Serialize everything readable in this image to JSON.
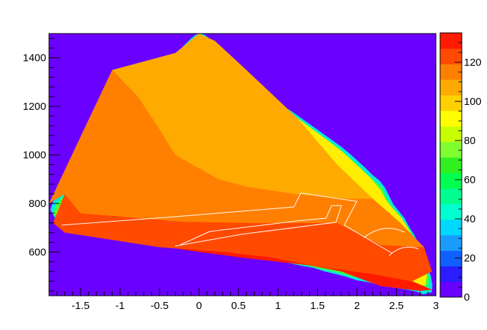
{
  "chart_data": {
    "type": "heatmap",
    "title": "",
    "xlabel": "",
    "ylabel": "",
    "xlim": [
      -1.9,
      3.0
    ],
    "ylim": [
      420,
      1500
    ],
    "x_ticks": [
      -1.5,
      -1,
      -0.5,
      0,
      0.5,
      1,
      1.5,
      2,
      2.5,
      3
    ],
    "x_tick_labels": [
      "-1.5",
      "-1",
      "-0.5",
      "0",
      "0.5",
      "1",
      "1.5",
      "2",
      "2.5",
      "3"
    ],
    "y_ticks": [
      600,
      800,
      1000,
      1200,
      1400
    ],
    "y_tick_labels": [
      "600",
      "800",
      "1000",
      "1200",
      "1400"
    ],
    "z_range": [
      0,
      135
    ],
    "colorbar_ticks": [
      0,
      20,
      40,
      60,
      80,
      100,
      120
    ],
    "colorbar_tick_labels": [
      "0",
      "20",
      "40",
      "60",
      "80",
      "100",
      "120"
    ],
    "colorbar_levels": [
      "#6a00ff",
      "#2a1dff",
      "#1060ff",
      "#1a9cff",
      "#00d8ff",
      "#00ffd0",
      "#00ff90",
      "#00ff50",
      "#30f020",
      "#80ff30",
      "#c8ff00",
      "#ffff00",
      "#ffd000",
      "#ffaa00",
      "#ff8000",
      "#ff4a00",
      "#ff1a00"
    ],
    "regions": [
      {
        "level": "~0 (background)",
        "color": "#6a00ff"
      },
      {
        "level": "~100-110",
        "color": "#ffaa00",
        "boundary": [
          [
            0,
            1500
          ],
          [
            0.2,
            1470
          ],
          [
            0.6,
            1350
          ],
          [
            1.25,
            1150
          ],
          [
            1.75,
            960
          ],
          [
            2.2,
            820
          ],
          [
            1.9,
            820
          ],
          [
            1.2,
            840
          ],
          [
            0.6,
            870
          ],
          [
            0.25,
            900
          ],
          [
            -0.3,
            1000
          ],
          [
            -0.45,
            1080
          ],
          [
            -0.75,
            1230
          ],
          [
            -1.1,
            1350
          ],
          [
            -0.3,
            1420
          ]
        ]
      },
      {
        "level": "~110-120",
        "color": "#ff8000",
        "boundary": [
          [
            -1.1,
            1350
          ],
          [
            -0.75,
            1230
          ],
          [
            -0.45,
            1080
          ],
          [
            -0.3,
            1000
          ],
          [
            0.25,
            900
          ],
          [
            0.6,
            870
          ],
          [
            1.2,
            840
          ],
          [
            1.9,
            820
          ],
          [
            2.2,
            820
          ],
          [
            2.55,
            720
          ],
          [
            2.85,
            620
          ],
          [
            2.3,
            630
          ],
          [
            1.75,
            720
          ],
          [
            0.7,
            720
          ],
          [
            -0.2,
            725
          ],
          [
            -1.5,
            760
          ],
          [
            -1.7,
            840
          ],
          [
            -1.9,
            800
          ]
        ]
      },
      {
        "level": "~120-130",
        "color": "#ff4a00",
        "boundary": [
          [
            -1.7,
            840
          ],
          [
            -1.5,
            760
          ],
          [
            -0.2,
            725
          ],
          [
            0.7,
            720
          ],
          [
            1.75,
            720
          ],
          [
            2.3,
            630
          ],
          [
            2.85,
            620
          ],
          [
            2.95,
            520
          ],
          [
            2.7,
            480
          ],
          [
            2.2,
            510
          ],
          [
            1.5,
            540
          ],
          [
            0.9,
            580
          ],
          [
            0.3,
            600
          ],
          [
            -0.5,
            620
          ],
          [
            -1.1,
            650
          ],
          [
            -1.7,
            680
          ],
          [
            -1.85,
            720
          ]
        ]
      },
      {
        "level": ">130",
        "color": "#ff1a00",
        "boundary": [
          [
            -0.3,
            615
          ],
          [
            0.3,
            600
          ],
          [
            0.9,
            580
          ],
          [
            1.5,
            540
          ],
          [
            2.2,
            510
          ],
          [
            2.7,
            480
          ],
          [
            2.95,
            445
          ],
          [
            2.8,
            440
          ],
          [
            2.3,
            460
          ],
          [
            1.8,
            520
          ],
          [
            1.4,
            545
          ],
          [
            0.6,
            575
          ],
          [
            -0.1,
            605
          ]
        ]
      }
    ]
  }
}
